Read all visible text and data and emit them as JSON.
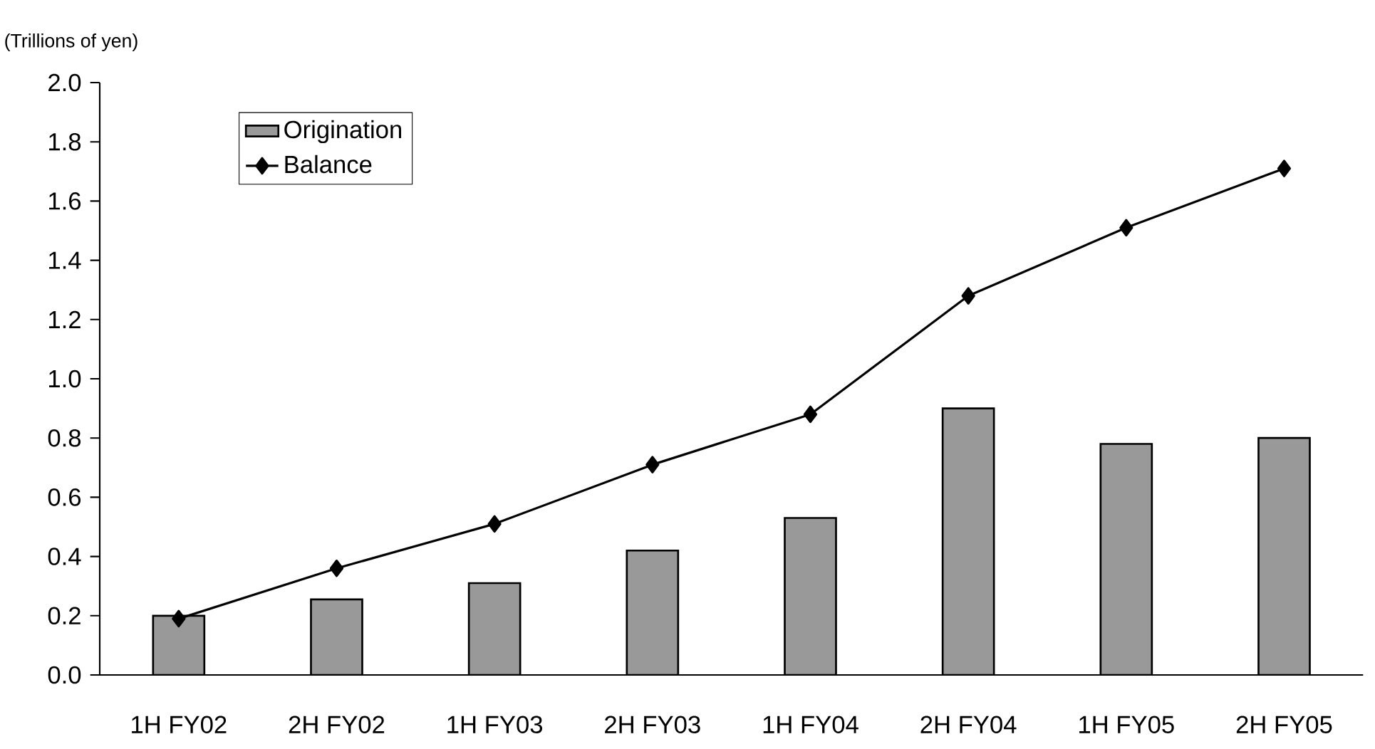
{
  "chart_data": {
    "type": "bar",
    "ylabel": "(Trillions of yen)",
    "categories": [
      "1H FY02",
      "2H FY02",
      "1H FY03",
      "2H FY03",
      "1H FY04",
      "2H FY04",
      "1H FY05",
      "2H FY05"
    ],
    "series": [
      {
        "name": "Origination",
        "type": "bar",
        "color": "#999999",
        "values": [
          0.2,
          0.255,
          0.31,
          0.42,
          0.53,
          0.9,
          0.78,
          0.8
        ]
      },
      {
        "name": "Balance",
        "type": "line",
        "color": "#000000",
        "marker": "diamond",
        "values": [
          0.19,
          0.36,
          0.51,
          0.71,
          0.88,
          1.28,
          1.51,
          1.71
        ]
      }
    ],
    "ylim": [
      0,
      2.0
    ],
    "yticks": [
      {
        "value": 0,
        "label": "0.0"
      },
      {
        "value": 0.2,
        "label": "0.2"
      },
      {
        "value": 0.4,
        "label": "0.4"
      },
      {
        "value": 0.6,
        "label": "0.6"
      },
      {
        "value": 0.8,
        "label": "0.8"
      },
      {
        "value": 1.0,
        "label": "1.0"
      },
      {
        "value": 1.2,
        "label": "1.2"
      },
      {
        "value": 1.4,
        "label": "1.4"
      },
      {
        "value": 1.6,
        "label": "1.6"
      },
      {
        "value": 1.8,
        "label": "1.8"
      },
      {
        "value": 2.0,
        "label": "2.0"
      }
    ],
    "legend": "top left",
    "grid": false
  }
}
